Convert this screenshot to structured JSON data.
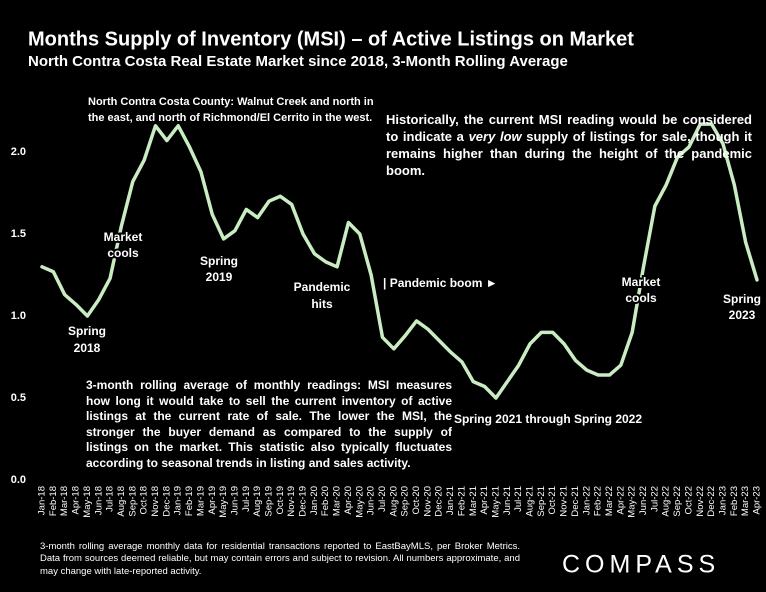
{
  "chart_data": {
    "type": "line",
    "title": "Months Supply of Inventory (MSI) – of Active Listings on Market",
    "subtitle": "North Contra Costa Real Estate Market since 2018, 3-Month Rolling Average",
    "categories": [
      "Jan-18",
      "Feb-18",
      "Mar-18",
      "Apr-18",
      "May-18",
      "Jun-18",
      "Jul-18",
      "Aug-18",
      "Sep-18",
      "Oct-18",
      "Nov-18",
      "Dec-18",
      "Jan-19",
      "Feb-19",
      "Mar-19",
      "Apr-19",
      "May-19",
      "Jun-19",
      "Jul-19",
      "Aug-19",
      "Sep-19",
      "Oct-19",
      "Nov-19",
      "Dec-19",
      "Jan-20",
      "Feb-20",
      "Mar-20",
      "Apr-20",
      "May-20",
      "Jun-20",
      "Jul-20",
      "Aug-20",
      "Sep-20",
      "Oct-20",
      "Nov-20",
      "Dec-20",
      "Jan-21",
      "Feb-21",
      "Mar-21",
      "Apr-21",
      "May-21",
      "Jun-21",
      "Jul-21",
      "Aug-21",
      "Sep-21",
      "Oct-21",
      "Nov-21",
      "Dec-21",
      "Jan-22",
      "Feb-22",
      "Mar-22",
      "Apr-22",
      "May-22",
      "Jun-22",
      "Jul-22",
      "Aug-22",
      "Sep-22",
      "Oct-22",
      "Nov-22",
      "Dec-22",
      "Jan-23",
      "Feb-23",
      "Mar-23",
      "Apr-23"
    ],
    "series": [
      {
        "name": "MSI",
        "color": "#c9ecc2",
        "values": [
          1.3,
          1.27,
          1.13,
          1.07,
          1.0,
          1.1,
          1.23,
          1.55,
          1.82,
          1.95,
          2.16,
          2.07,
          2.16,
          2.03,
          1.88,
          1.62,
          1.47,
          1.52,
          1.65,
          1.6,
          1.7,
          1.73,
          1.68,
          1.5,
          1.38,
          1.33,
          1.3,
          1.57,
          1.5,
          1.25,
          0.87,
          0.8,
          0.88,
          0.97,
          0.92,
          0.85,
          0.78,
          0.72,
          0.6,
          0.57,
          0.5,
          0.6,
          0.7,
          0.83,
          0.9,
          0.9,
          0.83,
          0.73,
          0.67,
          0.64,
          0.64,
          0.7,
          0.9,
          1.3,
          1.67,
          1.8,
          1.97,
          2.03,
          2.17,
          2.17,
          2.05,
          1.8,
          1.45,
          1.22
        ]
      }
    ],
    "ylim": [
      0,
      2.3
    ],
    "yticks": [
      {
        "value": 0,
        "label": "0.0"
      },
      {
        "value": 0.5,
        "label": "0.5"
      },
      {
        "value": 1,
        "label": "1.0"
      },
      {
        "value": 1.5,
        "label": "1.5"
      },
      {
        "value": 2,
        "label": "2.0"
      }
    ],
    "grid": false,
    "annotations": [
      {
        "lines": [
          "North Contra Costa County: Walnut Creek and north in",
          "the east, and north of Richmond/El Cerrito in the west."
        ]
      },
      {
        "lines": [
          "Spring",
          "2018"
        ]
      },
      {
        "lines": [
          "Market",
          "cools"
        ]
      },
      {
        "lines": [
          "Spring",
          "2019"
        ]
      },
      {
        "lines": [
          "Pandemic",
          "hits"
        ]
      },
      {
        "lines": [
          "| Pandemic boom ►"
        ]
      },
      {
        "lines": [
          "Market",
          "cools"
        ]
      },
      {
        "lines": [
          "Spring",
          "2023"
        ]
      },
      {
        "lines": [
          "Spring 2021 through Spring 2022"
        ]
      }
    ],
    "note_history": [
      "Historically, the current MSI reading would be considered to indicate a ",
      "very low",
      " supply of listings for sale, though it remains higher than during the height of the pandemic boom."
    ],
    "note_definition": "3-month rolling average of monthly readings: MSI measures how long it would take to sell the current inventory of active listings at the current rate of sale. The lower the MSI, the stronger the buyer demand as compared to the supply of listings on the market. This statistic also typically fluctuates according to seasonal trends in listing and sales activity."
  },
  "footer": "3-month rolling average monthly data for residential transactions reported to EastBayMLS, per Broker Metrics. Data from sources deemed reliable, but may contain errors and subject to revision. All numbers approximate, and may change with late-reported activity.",
  "logo": "COMPASS"
}
